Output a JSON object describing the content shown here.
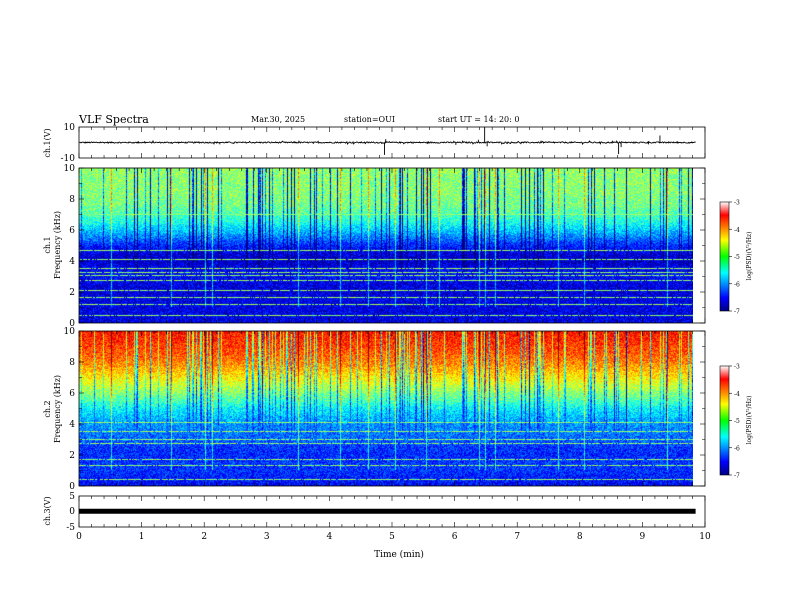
{
  "header": {
    "title": "VLF Spectra",
    "date": "Mar.30, 2025",
    "station": "station=OUI",
    "start": "start  UT =   14: 20: 0"
  },
  "chart_data": [
    {
      "type": "line",
      "panel": "ch1-waveform",
      "ylabel": "ch.1(V)",
      "ylim": [
        -10,
        10
      ],
      "yticks": [
        "10",
        "-10"
      ],
      "xlim": [
        0,
        10
      ],
      "baseline": 0,
      "noise_amplitude": 0.4,
      "spikes": [
        {
          "x": 0.95,
          "y": 0.8
        },
        {
          "x": 2.25,
          "y": -1.2
        },
        {
          "x": 4.88,
          "y": -8.0
        },
        {
          "x": 4.9,
          "y": 2.2
        },
        {
          "x": 6.02,
          "y": -1.5
        },
        {
          "x": 6.38,
          "y": 1.8
        },
        {
          "x": 6.48,
          "y": 10.0
        },
        {
          "x": 6.52,
          "y": -2.5
        },
        {
          "x": 7.38,
          "y": 1.2
        },
        {
          "x": 8.62,
          "y": -7.5
        },
        {
          "x": 8.66,
          "y": -3.0
        },
        {
          "x": 9.1,
          "y": 1.0
        },
        {
          "x": 9.28,
          "y": 4.5
        }
      ]
    },
    {
      "type": "heatmap",
      "panel": "ch1-spectrogram",
      "ylabel_line1": "ch.1",
      "ylabel_line2": "Frequency (kHz)",
      "ylim": [
        0,
        10
      ],
      "yticks": [
        "0",
        "2",
        "4",
        "6",
        "8",
        "10"
      ],
      "xlim": [
        0,
        9.85
      ],
      "profile_khz": [
        0,
        0.5,
        1,
        1.5,
        2,
        2.5,
        3,
        3.5,
        4,
        4.5,
        5,
        5.5,
        6,
        6.5,
        7,
        7.5,
        8,
        8.5,
        9,
        9.5,
        10
      ],
      "profile_logpsd": [
        -6.6,
        -6.6,
        -6.6,
        -6.6,
        -6.65,
        -6.6,
        -6.5,
        -6.55,
        -6.7,
        -6.6,
        -6.35,
        -6.0,
        -5.7,
        -5.4,
        -5.2,
        -5.05,
        -5.0,
        -4.95,
        -4.95,
        -4.95,
        -4.9
      ],
      "lines_khz": [
        0.45,
        1.2,
        1.6,
        2.1,
        2.75,
        3.05,
        3.25,
        3.5,
        4.1,
        4.65,
        7.0
      ],
      "colorbar": {
        "label": "log(PSD)(V²/Hz)",
        "min": -7,
        "max": -3,
        "ticks": [
          "-3",
          "-4",
          "-5",
          "-6",
          "-7"
        ]
      }
    },
    {
      "type": "heatmap",
      "panel": "ch2-spectrogram",
      "ylabel_line1": "ch.2",
      "ylabel_line2": "Frequency (kHz)",
      "ylim": [
        0,
        10
      ],
      "yticks": [
        "0",
        "2",
        "4",
        "6",
        "8",
        "10"
      ],
      "xlim": [
        0,
        9.85
      ],
      "profile_khz": [
        0,
        0.5,
        1,
        1.5,
        2,
        2.5,
        3,
        3.5,
        4,
        4.5,
        5,
        5.5,
        6,
        6.5,
        7,
        7.5,
        8,
        8.5,
        9,
        9.5,
        10
      ],
      "profile_logpsd": [
        -6.5,
        -6.4,
        -6.3,
        -6.3,
        -6.35,
        -6.3,
        -6.1,
        -6.0,
        -5.9,
        -5.7,
        -5.5,
        -5.2,
        -4.95,
        -4.7,
        -4.45,
        -4.2,
        -4.0,
        -3.85,
        -3.75,
        -3.65,
        -3.55
      ],
      "lines_khz": [
        0.4,
        1.3,
        1.7,
        2.7,
        3.0,
        3.5,
        4.1
      ],
      "colorbar": {
        "label": "log(PSD)(V²/Hz)",
        "min": -7,
        "max": -3,
        "ticks": [
          "-3",
          "-4",
          "-5",
          "-6",
          "-7"
        ]
      }
    },
    {
      "type": "line",
      "panel": "ch3-waveform",
      "ylabel": "ch.3(V)",
      "ylim": [
        -5,
        5
      ],
      "yticks": [
        "5",
        "0",
        "-5"
      ],
      "xlim": [
        0,
        10
      ],
      "baseline": 0.1,
      "xlabel": "Time (min)",
      "xticks": [
        "0",
        "1",
        "2",
        "3",
        "4",
        "5",
        "6",
        "7",
        "8",
        "9",
        "10"
      ]
    }
  ]
}
